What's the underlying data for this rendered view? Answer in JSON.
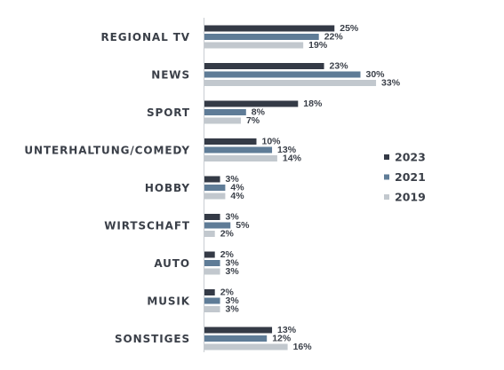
{
  "chart_data": {
    "type": "bar",
    "orientation": "horizontal",
    "categories": [
      "REGIONAL TV",
      "NEWS",
      "SPORT",
      "UNTERHALTUNG/COMEDY",
      "HOBBY",
      "WIRTSCHAFT",
      "AUTO",
      "MUSIK",
      "SONSTIGES"
    ],
    "series": [
      {
        "name": "2023",
        "color": "#343a46",
        "values": [
          25,
          23,
          18,
          10,
          3,
          3,
          2,
          2,
          13
        ]
      },
      {
        "name": "2021",
        "color": "#5f7c97",
        "values": [
          22,
          30,
          8,
          13,
          4,
          5,
          3,
          3,
          12
        ]
      },
      {
        "name": "2019",
        "color": "#c2c8ce",
        "values": [
          19,
          33,
          7,
          14,
          4,
          2,
          3,
          3,
          16
        ]
      }
    ],
    "value_suffix": "%",
    "legend_position": "right",
    "grid": false
  }
}
